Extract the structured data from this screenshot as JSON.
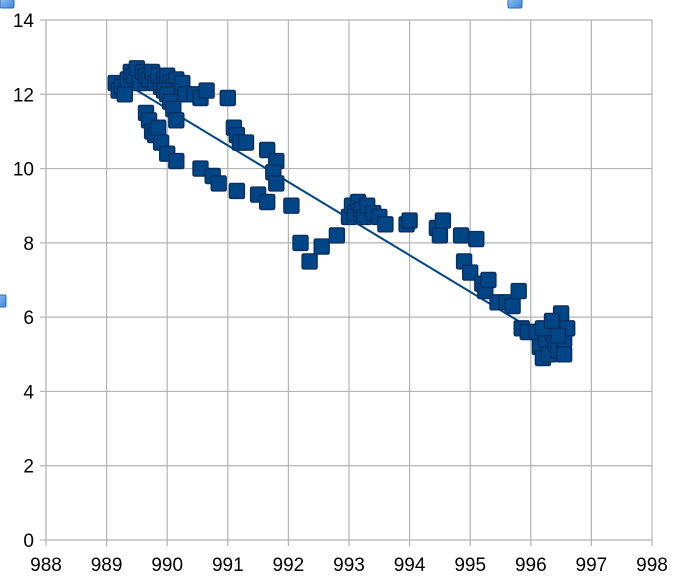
{
  "chart_data": {
    "type": "scatter",
    "title": "",
    "xlabel": "",
    "ylabel": "",
    "xlim": [
      988,
      998
    ],
    "ylim": [
      0,
      14
    ],
    "x_ticks": [
      988,
      989,
      990,
      991,
      992,
      993,
      994,
      995,
      996,
      997,
      998
    ],
    "y_ticks": [
      0,
      2,
      4,
      6,
      8,
      10,
      12,
      14
    ],
    "x_tick_labels": [
      "988",
      "989",
      "990",
      "991",
      "992",
      "993",
      "994",
      "995",
      "996",
      "997",
      "998"
    ],
    "y_tick_labels": [
      "0",
      "2",
      "4",
      "6",
      "8",
      "10",
      "12",
      "14"
    ],
    "grid": true,
    "legend": "none",
    "colors": {
      "marker_fill": "#004586",
      "marker_stroke": "#0a2f5e",
      "trendline": "#004586",
      "grid": "#b3b3b3",
      "axis": "#b3b3b3"
    },
    "trendline": {
      "type": "linear",
      "x": [
        989.2,
        996.3
      ],
      "y": [
        12.4,
        5.4
      ]
    },
    "series": [
      {
        "marker": "square",
        "points": [
          [
            989.15,
            12.3
          ],
          [
            989.2,
            12.1
          ],
          [
            989.25,
            12.2
          ],
          [
            989.3,
            12.0
          ],
          [
            989.35,
            12.4
          ],
          [
            989.4,
            12.6
          ],
          [
            989.45,
            12.5
          ],
          [
            989.5,
            12.7
          ],
          [
            989.55,
            12.3
          ],
          [
            989.6,
            12.6
          ],
          [
            989.65,
            12.5
          ],
          [
            989.7,
            12.4
          ],
          [
            989.75,
            12.6
          ],
          [
            989.8,
            12.3
          ],
          [
            989.85,
            12.5
          ],
          [
            989.9,
            12.2
          ],
          [
            989.95,
            12.4
          ],
          [
            990.0,
            12.5
          ],
          [
            990.05,
            12.3
          ],
          [
            990.1,
            12.2
          ],
          [
            990.15,
            12.4
          ],
          [
            990.2,
            12.1
          ],
          [
            990.25,
            12.3
          ],
          [
            989.95,
            12.1
          ],
          [
            990.0,
            12.0
          ],
          [
            990.05,
            11.8
          ],
          [
            990.1,
            11.6
          ],
          [
            990.15,
            11.3
          ],
          [
            989.65,
            11.5
          ],
          [
            989.7,
            11.3
          ],
          [
            989.75,
            11.0
          ],
          [
            989.8,
            10.9
          ],
          [
            989.85,
            11.1
          ],
          [
            989.9,
            10.7
          ],
          [
            990.0,
            10.4
          ],
          [
            990.15,
            10.2
          ],
          [
            990.3,
            12.0
          ],
          [
            990.45,
            12.0
          ],
          [
            990.55,
            11.9
          ],
          [
            990.65,
            12.1
          ],
          [
            990.55,
            10.0
          ],
          [
            990.75,
            9.8
          ],
          [
            990.85,
            9.6
          ],
          [
            991.0,
            11.9
          ],
          [
            991.1,
            11.1
          ],
          [
            991.15,
            10.9
          ],
          [
            991.2,
            10.7
          ],
          [
            991.3,
            10.7
          ],
          [
            991.15,
            9.4
          ],
          [
            991.5,
            9.3
          ],
          [
            991.65,
            9.1
          ],
          [
            991.65,
            10.5
          ],
          [
            991.8,
            10.2
          ],
          [
            991.75,
            9.9
          ],
          [
            991.8,
            9.6
          ],
          [
            992.05,
            9.0
          ],
          [
            992.2,
            8.0
          ],
          [
            992.35,
            7.5
          ],
          [
            992.55,
            7.9
          ],
          [
            992.8,
            8.2
          ],
          [
            993.0,
            8.7
          ],
          [
            993.05,
            9.0
          ],
          [
            993.1,
            8.8
          ],
          [
            993.15,
            9.1
          ],
          [
            993.2,
            8.9
          ],
          [
            993.25,
            8.7
          ],
          [
            993.3,
            9.0
          ],
          [
            993.4,
            8.8
          ],
          [
            993.5,
            8.7
          ],
          [
            993.6,
            8.5
          ],
          [
            993.95,
            8.5
          ],
          [
            994.0,
            8.6
          ],
          [
            994.45,
            8.4
          ],
          [
            994.5,
            8.2
          ],
          [
            994.55,
            8.6
          ],
          [
            994.85,
            8.2
          ],
          [
            994.9,
            7.5
          ],
          [
            995.0,
            7.2
          ],
          [
            995.1,
            8.1
          ],
          [
            995.2,
            6.9
          ],
          [
            995.25,
            6.7
          ],
          [
            995.3,
            7.0
          ],
          [
            995.45,
            6.4
          ],
          [
            995.6,
            6.4
          ],
          [
            995.7,
            6.3
          ],
          [
            995.8,
            6.7
          ],
          [
            995.85,
            5.7
          ],
          [
            995.95,
            5.6
          ],
          [
            996.1,
            5.6
          ],
          [
            996.15,
            5.2
          ],
          [
            996.2,
            4.9
          ],
          [
            996.25,
            5.4
          ],
          [
            996.3,
            5.0
          ],
          [
            996.35,
            5.6
          ],
          [
            996.4,
            5.3
          ],
          [
            996.45,
            5.1
          ],
          [
            996.5,
            5.8
          ],
          [
            996.5,
            6.1
          ],
          [
            996.55,
            5.4
          ],
          [
            996.55,
            5.0
          ],
          [
            996.6,
            5.7
          ],
          [
            996.45,
            5.5
          ],
          [
            996.2,
            5.7
          ],
          [
            996.35,
            5.9
          ]
        ]
      }
    ]
  }
}
